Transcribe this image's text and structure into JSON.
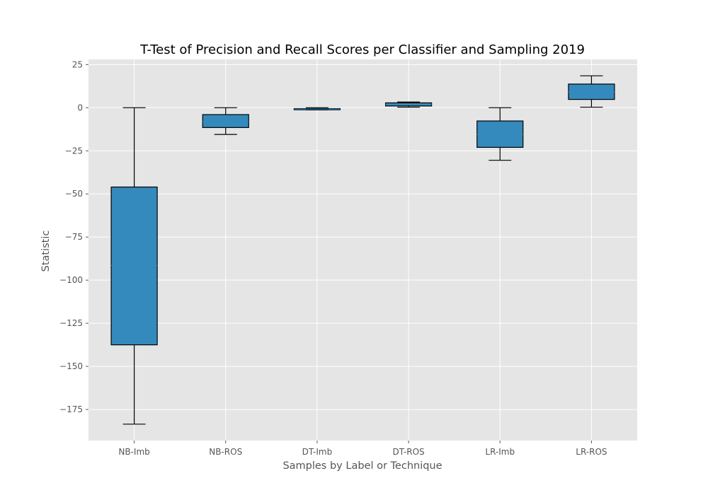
{
  "chart_data": {
    "type": "box",
    "title": "T-Test of Precision and Recall Scores per Classifier and Sampling 2019",
    "xlabel": "Samples by Label or Technique",
    "ylabel": "Statistic",
    "ylim": [
      -193,
      28
    ],
    "yticks": [
      25,
      0,
      -25,
      -50,
      -75,
      -100,
      -125,
      -150,
      -175
    ],
    "ytick_labels": [
      "25",
      "0",
      "−25",
      "−50",
      "−75",
      "−100",
      "−125",
      "−150",
      "−175"
    ],
    "grid": true,
    "style": "ggplot",
    "categories": [
      "NB-Imb",
      "NB-ROS",
      "DT-Imb",
      "DT-ROS",
      "LR-Imb",
      "LR-ROS"
    ],
    "boxes": [
      {
        "label": "NB-Imb",
        "whisker_low": -183.5,
        "q1": -137.5,
        "median": -91.5,
        "q3": -46,
        "whisker_high": 0
      },
      {
        "label": "NB-ROS",
        "whisker_low": -15.5,
        "q1": -11.5,
        "median": -8,
        "q3": -4,
        "whisker_high": 0
      },
      {
        "label": "DT-Imb",
        "whisker_low": -1.3,
        "q1": -1.2,
        "median": -0.8,
        "q3": -0.5,
        "whisker_high": 0
      },
      {
        "label": "DT-ROS",
        "whisker_low": 0.3,
        "q1": 1,
        "median": 2,
        "q3": 2.8,
        "whisker_high": 3.3
      },
      {
        "label": "LR-Imb",
        "whisker_low": -30.5,
        "q1": -23,
        "median": -15.5,
        "q3": -7.7,
        "whisker_high": 0
      },
      {
        "label": "LR-ROS",
        "whisker_low": 0.3,
        "q1": 4.8,
        "median": 9,
        "q3": 13.7,
        "whisker_high": 18.5
      }
    ],
    "colors": {
      "box_fill": "#348abd",
      "plot_background": "#e5e5e5",
      "grid": "#ffffff",
      "edge": "#000000",
      "figure_background": "#ffffff"
    }
  }
}
